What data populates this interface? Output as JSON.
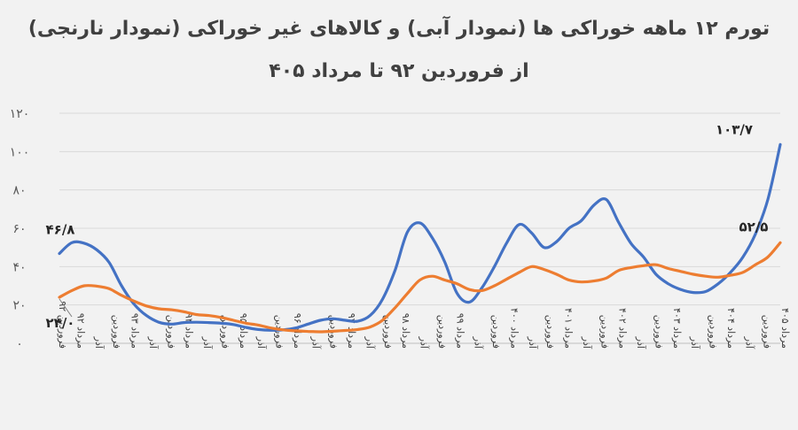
{
  "chart_data": {
    "type": "line",
    "title": "تورم ۱۲ ماهه خوراکی ها (نمودار آبی) و کالاهای غیر خوراکی (نمودار نارنجی)",
    "subtitle": "از فروردین ۹۲ تا مرداد ۴۰۵",
    "ylim": [
      0,
      120
    ],
    "yticks": [
      "۰",
      "۲۰",
      "۴۰",
      "۶۰",
      "۸۰",
      "۱۰۰",
      "۱۲۰"
    ],
    "grid": true,
    "x_labels": [
      "فروردین ۹۲",
      "مرداد ۹۲",
      "آذر",
      "فروردین",
      "مرداد ۹۳",
      "آذر",
      "فروردین",
      "مرداد ۹۴",
      "آذر",
      "فروردین",
      "مرداد ۹۵",
      "آذر",
      "فروردین",
      "مرداد ۹۶",
      "آذر",
      "فروردین",
      "مرداد ۹۷",
      "آذر",
      "فروردین",
      "مرداد ۹۸",
      "آذر",
      "فروردین",
      "مرداد ۹۹",
      "آذر",
      "فروردین",
      "مرداد ۴۰۰",
      "آذر",
      "فروردین",
      "مرداد ۴۰۱",
      "آذر",
      "فروردین",
      "مرداد ۴۰۲",
      "آذر",
      "فروردین",
      "مرداد ۴۰۳",
      "آذر",
      "فروردین",
      "مرداد ۴۰۴",
      "آذر",
      "فروردین",
      "مرداد ۴۰۵"
    ],
    "series": [
      {
        "color": "#4472c4",
        "values": [
          46.8,
          52.5,
          52.2,
          48.8,
          42.2,
          30.0,
          20.5,
          14.5,
          11.0,
          10.0,
          10.8,
          11.0,
          10.8,
          10.5,
          9.8,
          8.3,
          7.2,
          6.8,
          7.0,
          8.0,
          10.0,
          12.0,
          12.8,
          12.0,
          11.5,
          14.5,
          23.0,
          38.0,
          58.0,
          62.8,
          55.0,
          42.5,
          26.0,
          21.5,
          29.0,
          40.0,
          52.5,
          62.0,
          57.5,
          50.0,
          53.0,
          60.0,
          64.0,
          72.0,
          75.0,
          63.0,
          52.0,
          45.0,
          36.0,
          31.0,
          28.0,
          26.5,
          27.0,
          31.0,
          37.0,
          45.0,
          57.0,
          75.0,
          103.7
        ],
        "annotations": [
          {
            "index": 0,
            "text": "۴۶/۸"
          },
          {
            "index": 58,
            "text": "۱۰۳/۷"
          }
        ]
      },
      {
        "color": "#ed7d31",
        "values": [
          24.0,
          27.5,
          30.0,
          29.8,
          28.5,
          25.0,
          22.0,
          19.5,
          18.0,
          17.5,
          16.5,
          15.0,
          14.5,
          13.5,
          12.0,
          10.5,
          9.5,
          8.0,
          7.0,
          6.5,
          6.2,
          6.0,
          6.3,
          6.7,
          7.2,
          8.5,
          12.0,
          18.5,
          26.0,
          33.0,
          35.0,
          33.0,
          31.0,
          28.0,
          27.5,
          30.0,
          33.5,
          37.0,
          40.0,
          38.5,
          36.0,
          33.0,
          32.0,
          32.5,
          34.0,
          38.0,
          39.5,
          40.5,
          41.0,
          39.0,
          37.5,
          36.0,
          35.0,
          34.5,
          35.5,
          37.0,
          41.0,
          45.0,
          52.5
        ],
        "annotations": [
          {
            "index": 0,
            "text": "۲۴/۰"
          },
          {
            "index": 58,
            "text": "۵۲/۵"
          }
        ]
      }
    ]
  }
}
